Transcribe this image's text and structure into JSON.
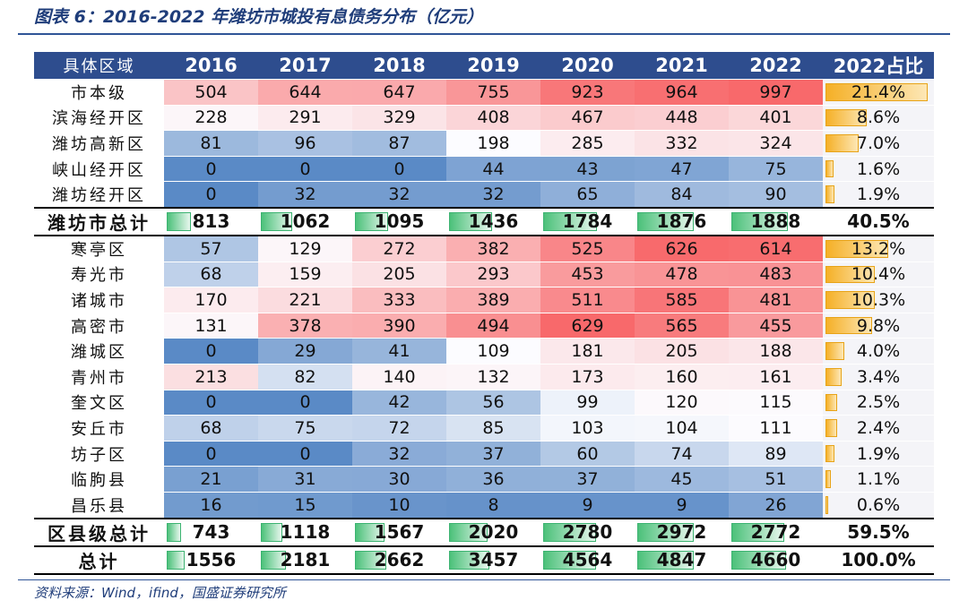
{
  "title": "图表 6：2016-2022 年潍坊市城投有息债务分布（亿元）",
  "table": {
    "header": [
      "具体区域",
      "2016",
      "2017",
      "2018",
      "2019",
      "2020",
      "2021",
      "2022",
      "2022占比"
    ],
    "rows": [
      [
        "市本级",
        504,
        644,
        647,
        755,
        923,
        964,
        997,
        "21.4%"
      ],
      [
        "滨海经开区",
        228,
        291,
        329,
        408,
        467,
        448,
        401,
        "8.6%"
      ],
      [
        "潍坊高新区",
        81,
        96,
        87,
        198,
        285,
        332,
        324,
        "7.0%"
      ],
      [
        "峡山经开区",
        0,
        0,
        0,
        44,
        43,
        47,
        75,
        "1.6%"
      ],
      [
        "潍坊经开区",
        0,
        32,
        32,
        32,
        65,
        84,
        90,
        "1.9%"
      ],
      [
        "潍坊市总计",
        813,
        1062,
        1095,
        1436,
        1784,
        1876,
        1888,
        "40.5%"
      ],
      [
        "寒亭区",
        57,
        129,
        272,
        382,
        525,
        626,
        614,
        "13.2%"
      ],
      [
        "寿光市",
        68,
        159,
        205,
        293,
        453,
        478,
        483,
        "10.4%"
      ],
      [
        "诸城市",
        170,
        221,
        333,
        389,
        511,
        585,
        481,
        "10.3%"
      ],
      [
        "高密市",
        131,
        378,
        390,
        494,
        629,
        565,
        455,
        "9.8%"
      ],
      [
        "潍城区",
        0,
        29,
        41,
        109,
        181,
        205,
        188,
        "4.0%"
      ],
      [
        "青州市",
        213,
        82,
        140,
        132,
        173,
        160,
        161,
        "3.4%"
      ],
      [
        "奎文区",
        0,
        0,
        42,
        56,
        99,
        120,
        115,
        "2.5%"
      ],
      [
        "安丘市",
        68,
        75,
        72,
        85,
        103,
        104,
        111,
        "2.4%"
      ],
      [
        "坊子区",
        0,
        0,
        32,
        37,
        60,
        74,
        89,
        "1.9%"
      ],
      [
        "临朐县",
        21,
        31,
        30,
        36,
        37,
        45,
        51,
        "1.1%"
      ],
      [
        "昌乐县",
        16,
        15,
        10,
        8,
        9,
        9,
        26,
        "0.6%"
      ],
      [
        "区县级总计",
        743,
        1118,
        1567,
        2020,
        2780,
        2972,
        2772,
        "59.5%"
      ],
      [
        "总计",
        1556,
        2181,
        2662,
        3457,
        4564,
        4847,
        4660,
        "100.0%"
      ]
    ]
  },
  "source": "资料来源：Wind，ifind，国盛证券研究所"
}
